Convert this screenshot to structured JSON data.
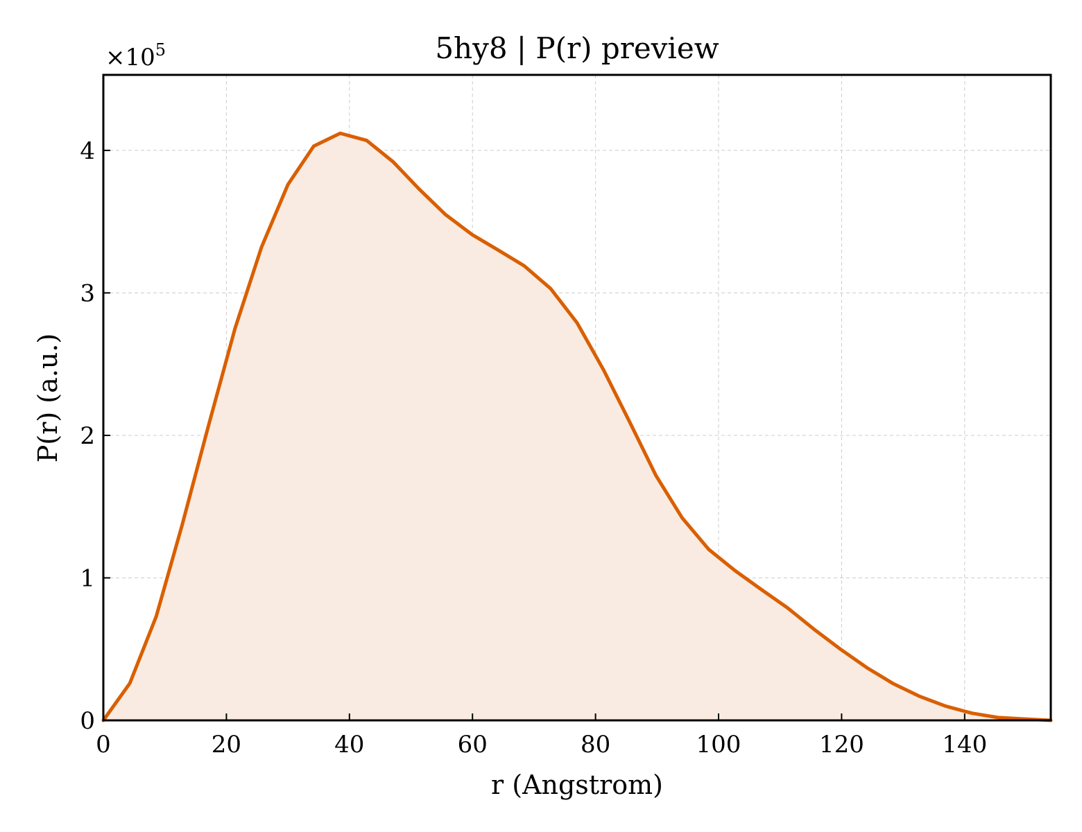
{
  "chart_data": {
    "type": "area",
    "title": "5hy8 | P(r) preview",
    "xlabel": "r (Angstrom)",
    "ylabel": "P(r) (a.u.)",
    "y_multiplier_text": "×10",
    "y_multiplier_exponent": "5",
    "xlim": [
      0,
      154
    ],
    "ylim": [
      0,
      4.53
    ],
    "x_ticks": [
      0,
      20,
      40,
      60,
      80,
      100,
      120,
      140
    ],
    "y_ticks": [
      0,
      1,
      2,
      3,
      4
    ],
    "grid": true,
    "legend": "none",
    "series": [
      {
        "color": "#d95f02",
        "fill_color": "#f9ebe1",
        "x": [
          0,
          4.3,
          8.6,
          12.8,
          17.1,
          21.4,
          25.7,
          30.0,
          34.2,
          38.5,
          42.8,
          47.1,
          51.3,
          55.6,
          59.9,
          64.2,
          68.4,
          72.7,
          77.0,
          81.3,
          85.6,
          89.8,
          94.1,
          98.4,
          102.7,
          106.9,
          111.2,
          115.5,
          119.8,
          124.1,
          128.3,
          132.6,
          136.9,
          141.2,
          145.4,
          149.7,
          154.0
        ],
        "y": [
          0.0,
          0.26,
          0.73,
          1.37,
          2.07,
          2.75,
          3.32,
          3.76,
          4.03,
          4.12,
          4.07,
          3.92,
          3.73,
          3.55,
          3.41,
          3.3,
          3.19,
          3.03,
          2.79,
          2.46,
          2.09,
          1.72,
          1.42,
          1.2,
          1.05,
          0.92,
          0.79,
          0.64,
          0.5,
          0.37,
          0.26,
          0.17,
          0.1,
          0.05,
          0.02,
          0.01,
          0.0
        ]
      }
    ]
  }
}
